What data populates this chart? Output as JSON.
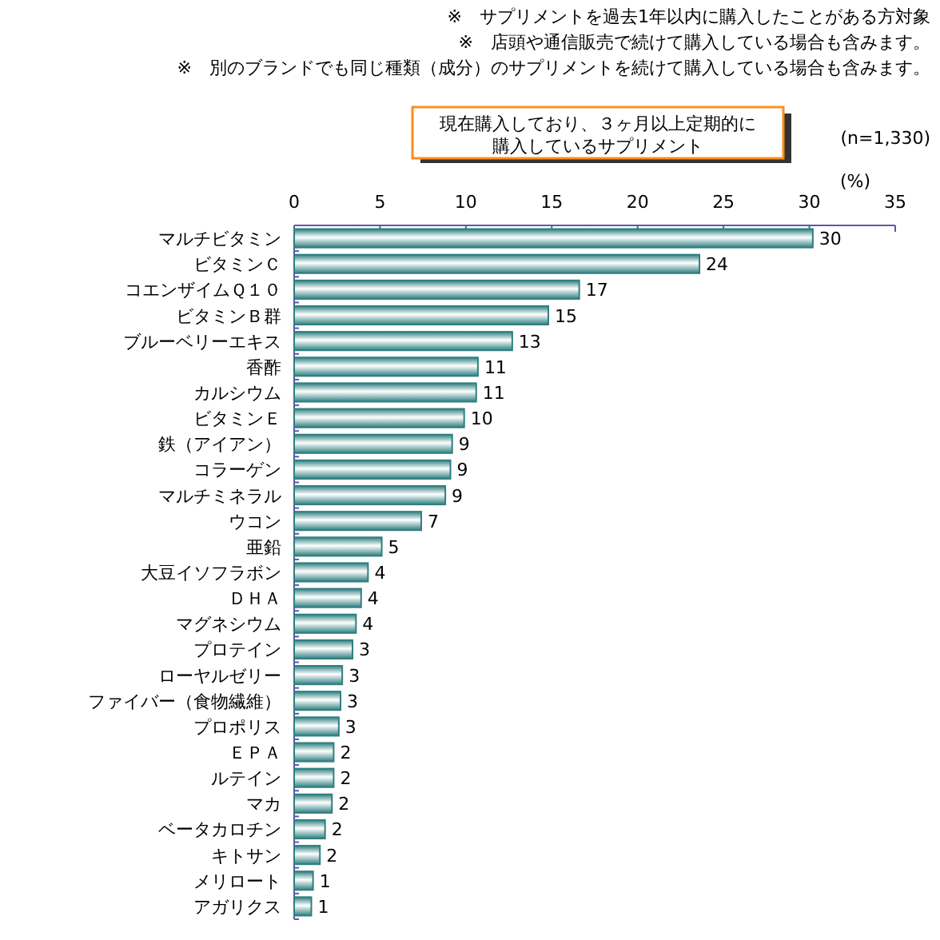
{
  "chart_data": {
    "type": "bar",
    "orientation": "horizontal",
    "title": "現在購入しており、３ヶ月以上定期的に購入しているサプリメント",
    "xlabel": "(%)",
    "annotations": [
      "※　サプリメントを過去1年以内に購入したことがある方対象",
      "※　店頭や通信販売で続けて購入している場合も含みます。",
      "※　別のブランドでも同じ種類（成分）のサプリメントを続けて購入している場合も含みます。",
      "(n=1,330)"
    ],
    "categories": [
      "マルチビタミン",
      "ビタミンＣ",
      "コエンザイムＱ１０",
      "ビタミンＢ群",
      "ブルーベリーエキス",
      "香酢",
      "カルシウム",
      "ビタミンＥ",
      "鉄（アイアン）",
      "コラーゲン",
      "マルチミネラル",
      "ウコン",
      "亜鉛",
      "大豆イソフラボン",
      "ＤＨＡ",
      "マグネシウム",
      "プロテイン",
      "ローヤルゼリー",
      "ファイバー（食物繊維）",
      "プロポリス",
      "ＥＰＡ",
      "ルテイン",
      "マカ",
      "ベータカロチン",
      "キトサン",
      "メリロート",
      "アガリクス"
    ],
    "values": [
      30.2,
      23.6,
      16.6,
      14.8,
      12.7,
      10.7,
      10.6,
      9.9,
      9.2,
      9.1,
      8.8,
      7.4,
      5.1,
      4.3,
      3.9,
      3.6,
      3.4,
      2.8,
      2.7,
      2.6,
      2.3,
      2.3,
      2.2,
      1.8,
      1.5,
      1.1,
      1.0
    ],
    "value_labels": [
      "30",
      "24",
      "17",
      "15",
      "13",
      "11",
      "11",
      "10",
      "9",
      "9",
      "9",
      "7",
      "5",
      "4",
      "4",
      "4",
      "3",
      "3",
      "3",
      "3",
      "2",
      "2",
      "2",
      "2",
      "2",
      "1",
      "1"
    ],
    "color": "#2f7f80",
    "xlim": [
      0,
      35
    ],
    "xticks": [
      0,
      5,
      10,
      15,
      20,
      25,
      30,
      35
    ]
  }
}
